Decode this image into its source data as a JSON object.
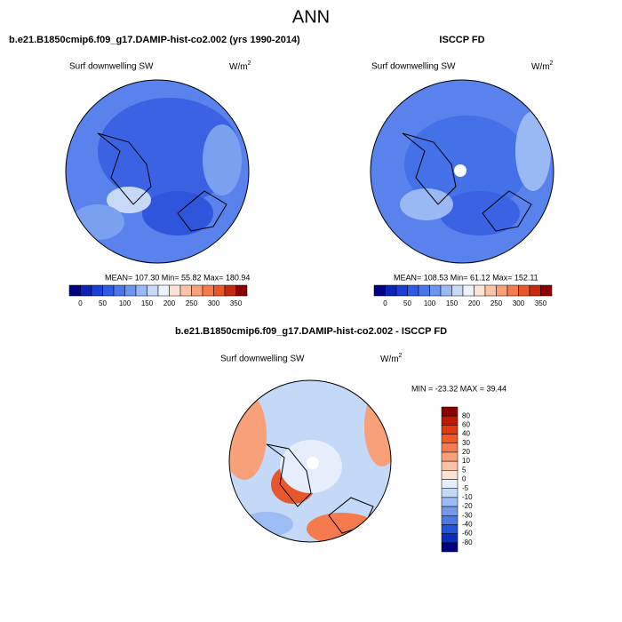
{
  "title": "ANN",
  "panels": [
    {
      "title": "b.e21.B1850cmip6.f09_g17.DAMIP-hist-co2.002 (yrs 1990-2014)",
      "subtitle": "Surf downwelling SW",
      "units": "W/m",
      "units_sup": "2",
      "stats": "MEAN= 107.30  Min=  55.82  Max= 180.94"
    },
    {
      "title": "ISCCP FD",
      "subtitle": "Surf downwelling SW",
      "units": "W/m",
      "units_sup": "2",
      "stats": "MEAN= 108.53  Min=  61.12  Max= 152.11"
    },
    {
      "title": "b.e21.B1850cmip6.f09_g17.DAMIP-hist-co2.002 - ISCCP FD",
      "subtitle": "Surf downwelling SW",
      "units": "W/m",
      "units_sup": "2",
      "stats": "MIN = -23.32 MAX =  39.44"
    }
  ],
  "colorbars": [
    {
      "labels": [
        0,
        50,
        100,
        150,
        200,
        250,
        300,
        350
      ],
      "colors": [
        "#000080",
        "#0a23b8",
        "#1a3fd8",
        "#2e5be6",
        "#4a76ec",
        "#6d95f0",
        "#9ab8f4",
        "#c8d9f8",
        "#eef2fb",
        "#fde3d6",
        "#fac3a8",
        "#f8a07a",
        "#f57a4e",
        "#e8562c",
        "#c42a0c",
        "#8b0000"
      ]
    },
    {
      "labels": [
        80,
        60,
        40,
        30,
        20,
        10,
        5,
        0,
        -5,
        -10,
        -20,
        -30,
        -40,
        -60,
        -80
      ],
      "colors": [
        "#8b0000",
        "#c01800",
        "#e03810",
        "#f05828",
        "#f57a4e",
        "#f8a07a",
        "#fac3a8",
        "#fde3d6",
        "#e6eefb",
        "#c4d8f8",
        "#9cbcf3",
        "#7499ec",
        "#4c78e4",
        "#2452d8",
        "#0a2cc0",
        "#00007f"
      ]
    }
  ]
}
